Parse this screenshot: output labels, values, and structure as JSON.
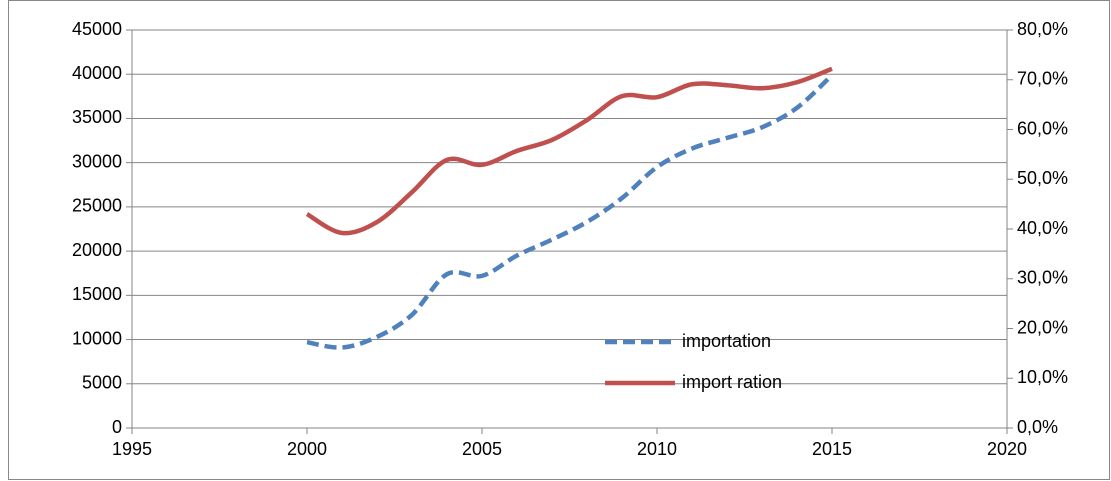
{
  "chart_data": {
    "type": "line",
    "x": [
      2000,
      2001,
      2002,
      2003,
      2004,
      2005,
      2006,
      2007,
      2008,
      2009,
      2010,
      2011,
      2012,
      2013,
      2014,
      2015
    ],
    "series": [
      {
        "name": "importation",
        "color": "#4f81bd",
        "dash": true,
        "values": [
          9700,
          9100,
          10300,
          12800,
          17400,
          17200,
          19500,
          21300,
          23300,
          26000,
          29500,
          31600,
          32800,
          34000,
          36200,
          39900
        ]
      },
      {
        "name": "import ration",
        "color": "#c0504d",
        "axis": "y2",
        "values": [
          43.0,
          39.2,
          41.4,
          47.4,
          53.9,
          52.9,
          55.7,
          57.9,
          61.9,
          66.7,
          66.5,
          69.1,
          68.9,
          68.3,
          69.5,
          72.2
        ]
      }
    ],
    "xlim": [
      1995,
      2020
    ],
    "xticks": [
      1995,
      2000,
      2005,
      2010,
      2015,
      2020
    ],
    "ylim": [
      0,
      45000
    ],
    "yticks": [
      0,
      5000,
      10000,
      15000,
      20000,
      25000,
      30000,
      35000,
      40000,
      45000
    ],
    "y2lim": [
      0,
      80
    ],
    "y2ticks": [
      {
        "value": 0,
        "label": "0,0%"
      },
      {
        "value": 10,
        "label": "10,0%"
      },
      {
        "value": 20,
        "label": "20,0%"
      },
      {
        "value": 30,
        "label": "30,0%"
      },
      {
        "value": 40,
        "label": "40,0%"
      },
      {
        "value": 50,
        "label": "50,0%"
      },
      {
        "value": 60,
        "label": "60,0%"
      },
      {
        "value": 70,
        "label": "70,0%"
      },
      {
        "value": 80,
        "label": "80,0%"
      }
    ],
    "grid": true,
    "legend": "inside-bottom-right",
    "smooth": true
  }
}
